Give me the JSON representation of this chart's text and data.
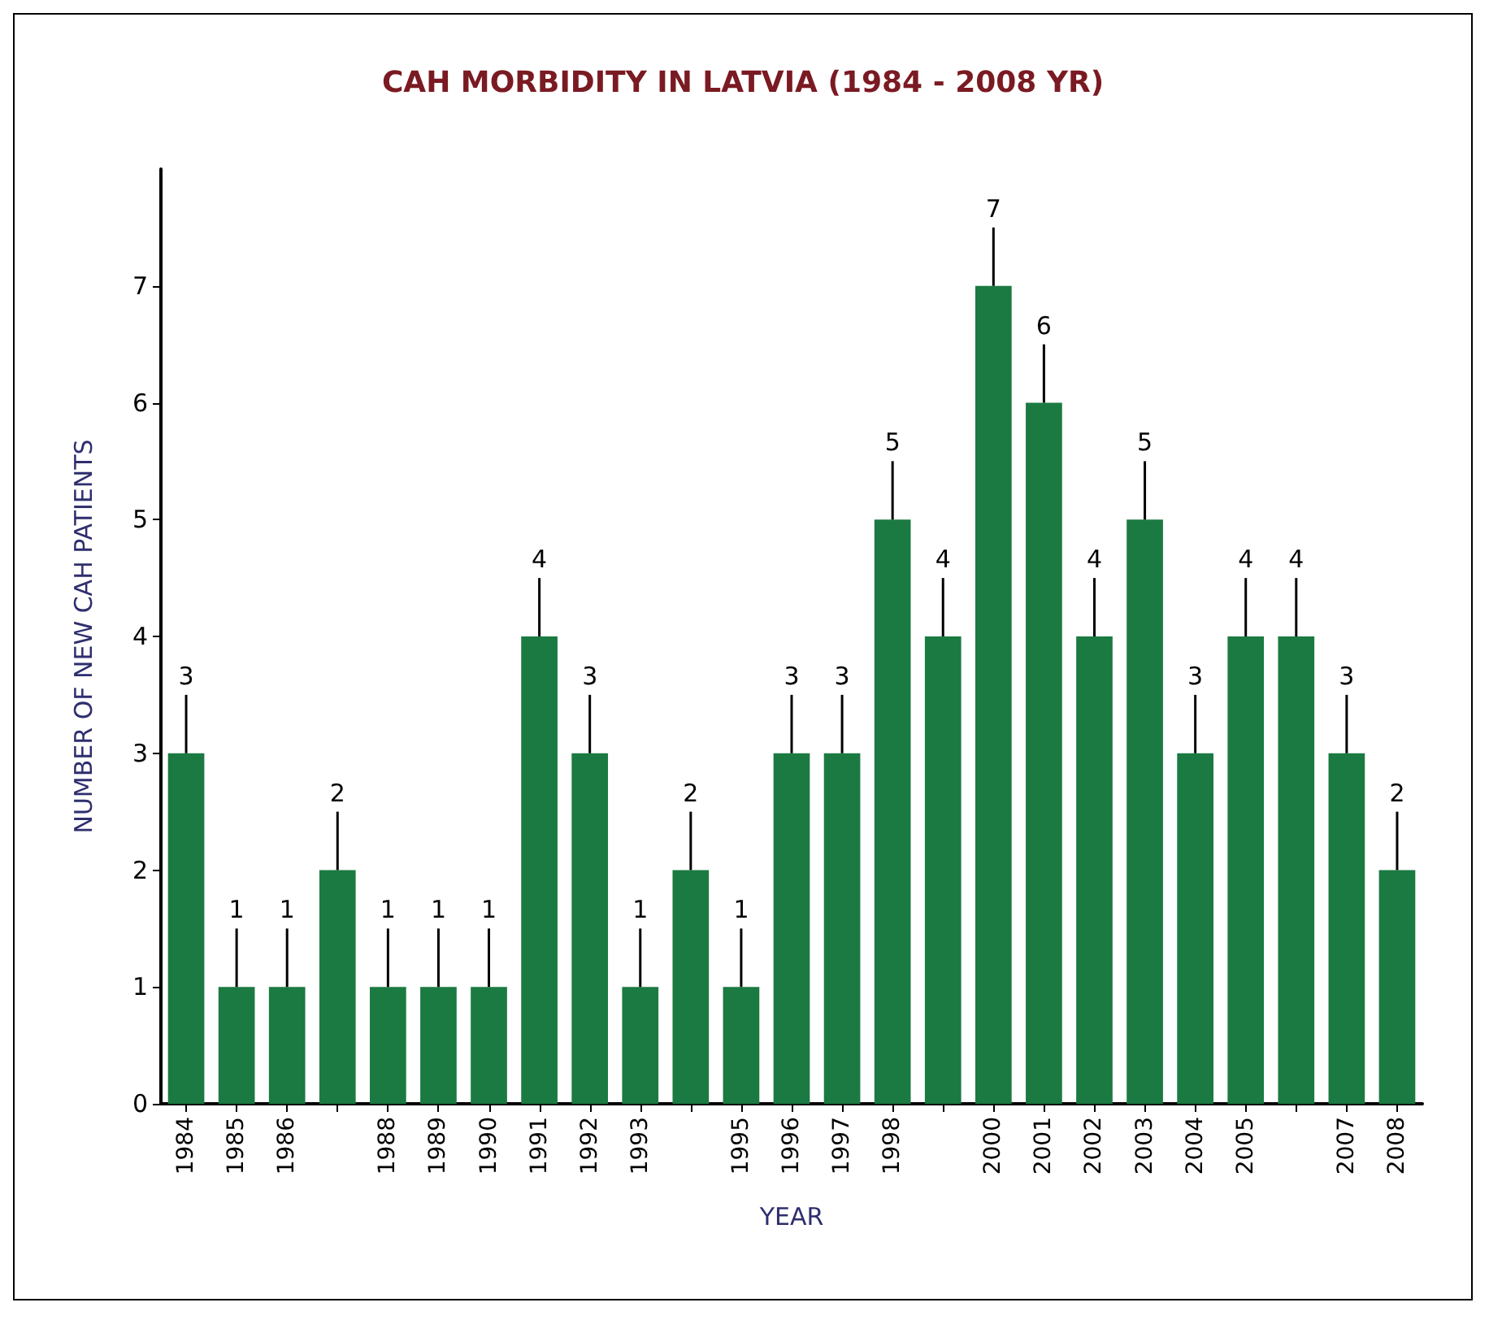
{
  "chart_data": {
    "type": "bar",
    "title": "CAH MORBIDITY IN LATVIA (1984 - 2008 YR)",
    "xlabel": "YEAR",
    "ylabel": "NUMBER OF NEW CAH PATIENTS",
    "categories": [
      "1984",
      "1985",
      "1986",
      null,
      "1988",
      "1989",
      "1990",
      "1991",
      "1992",
      "1993",
      null,
      "1995",
      "1996",
      "1997",
      "1998",
      null,
      "2000",
      "2001",
      "2002",
      "2003",
      "2004",
      "2005",
      null,
      "2007",
      "2008"
    ],
    "values": [
      3,
      1,
      1,
      2,
      1,
      1,
      1,
      4,
      3,
      1,
      2,
      1,
      3,
      3,
      5,
      4,
      7,
      6,
      4,
      5,
      3,
      4,
      4,
      3,
      2
    ],
    "errors": [
      [
        3,
        3.5
      ],
      [
        1,
        1.5
      ],
      [
        1,
        1.5
      ],
      [
        2,
        2.5
      ],
      [
        1,
        1.5
      ],
      [
        1,
        1.5
      ],
      [
        1,
        1.5
      ],
      [
        4,
        4.5
      ],
      [
        3,
        3.5
      ],
      [
        1,
        1.5
      ],
      [
        2,
        2.5
      ],
      [
        1,
        1.5
      ],
      [
        3,
        3.5
      ],
      [
        3,
        3.5
      ],
      [
        5,
        5.5
      ],
      [
        4,
        4.5
      ],
      [
        7,
        7.5
      ],
      [
        6,
        6.5
      ],
      [
        4,
        4.5
      ],
      [
        5,
        5.5
      ],
      [
        3,
        3.5
      ],
      [
        4,
        4.5
      ],
      [
        4,
        4.5
      ],
      [
        3,
        3.5
      ],
      [
        2,
        2.5
      ]
    ],
    "color": "#1b7a42",
    "data_labels": true,
    "ylim": [
      0,
      8
    ],
    "yticks": [
      0,
      1,
      2,
      3,
      4,
      5,
      6,
      7
    ],
    "grid": false
  }
}
